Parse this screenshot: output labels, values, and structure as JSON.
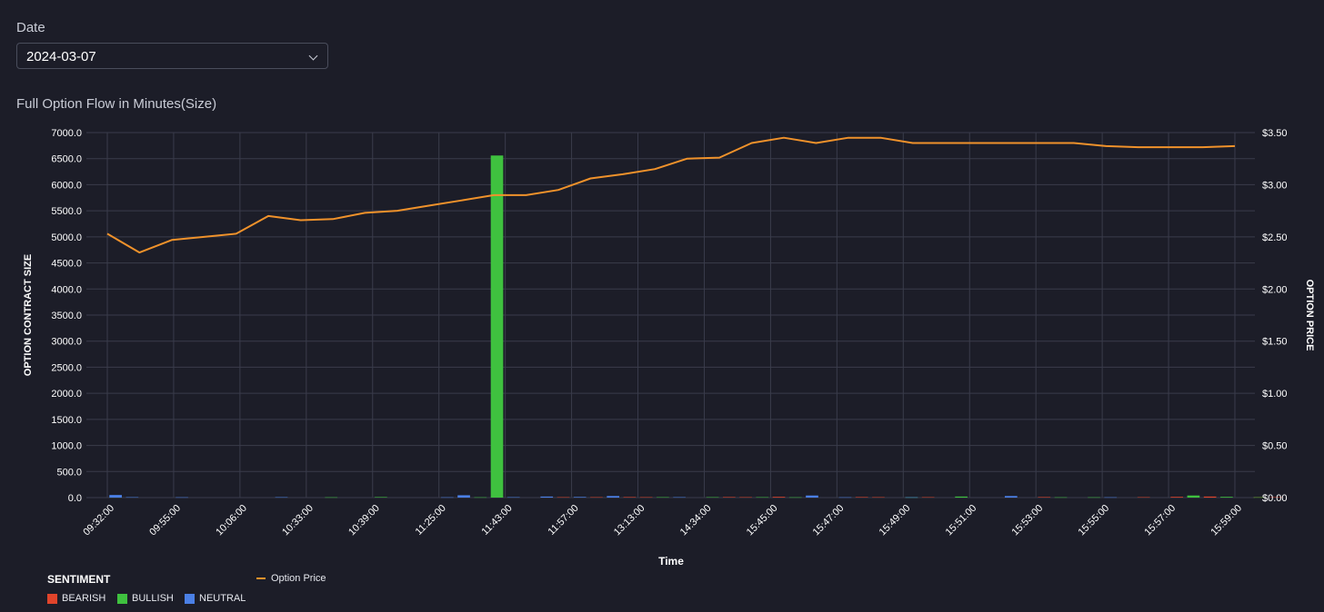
{
  "filter": {
    "label": "Date",
    "value": "2024-03-07",
    "icon": "chevron-down-icon"
  },
  "colors": {
    "bearish": "#e0442b",
    "bullish": "#3fc13f",
    "neutral": "#4b80e6",
    "price": "#f0922b",
    "grid": "#3a3c4b",
    "background": "#1c1d28"
  },
  "chart_data": {
    "type": "bar",
    "title": "Full Option Flow in Minutes(Size)",
    "xlabel": "Time",
    "ylabel": "OPTION CONTRACT SIZE",
    "y2label": "OPTION PRICE",
    "ylim": [
      0,
      7000
    ],
    "y2lim": [
      0,
      3.5
    ],
    "yticks": [
      "0.0",
      "500.0",
      "1000.0",
      "1500.0",
      "2000.0",
      "2500.0",
      "3000.0",
      "3500.0",
      "4000.0",
      "4500.0",
      "5000.0",
      "5500.0",
      "6000.0",
      "6500.0",
      "7000.0"
    ],
    "y2ticks": [
      "$0.00",
      "$0.50",
      "$1.00",
      "$1.50",
      "$2.00",
      "$2.50",
      "$3.00",
      "$3.50"
    ],
    "xticks": [
      "09:32:00",
      "09:55:00",
      "10:06:00",
      "10:33:00",
      "10:39:00",
      "11:25:00",
      "11:43:00",
      "11:57:00",
      "13:13:00",
      "14:34:00",
      "15:45:00",
      "15:47:00",
      "15:49:00",
      "15:51:00",
      "15:53:00",
      "15:55:00",
      "15:57:00",
      "15:59:00"
    ],
    "n_slots": 35,
    "grid": true,
    "legend": {
      "title": "SENTIMENT",
      "entries": [
        "BEARISH",
        "BULLISH",
        "NEUTRAL"
      ],
      "line_entry": "Option Price",
      "placement": "bottom-left"
    },
    "series": [
      {
        "name": "BEARISH",
        "bars": [
          [
            26,
            10
          ],
          [
            27,
            8
          ],
          [
            29,
            8
          ],
          [
            31,
            10
          ],
          [
            32,
            8
          ],
          [
            37,
            10
          ],
          [
            38,
            8
          ],
          [
            40,
            14
          ],
          [
            45,
            10
          ],
          [
            46,
            8
          ],
          [
            49,
            8
          ],
          [
            56,
            10
          ],
          [
            62,
            8
          ],
          [
            64,
            14
          ],
          [
            66,
            20
          ],
          [
            69,
            8
          ],
          [
            70,
            8
          ]
        ]
      },
      {
        "name": "BULLISH",
        "bars": [
          [
            0,
            8
          ],
          [
            13,
            6
          ],
          [
            16,
            10
          ],
          [
            22,
            6
          ],
          [
            23,
            6560
          ],
          [
            33,
            8
          ],
          [
            36,
            8
          ],
          [
            39,
            8
          ],
          [
            41,
            6
          ],
          [
            48,
            6
          ],
          [
            51,
            20
          ],
          [
            57,
            6
          ],
          [
            59,
            6
          ],
          [
            65,
            40
          ],
          [
            67,
            14
          ],
          [
            69,
            6
          ]
        ]
      },
      {
        "name": "NEUTRAL",
        "bars": [
          [
            0,
            50
          ],
          [
            1,
            8
          ],
          [
            4,
            6
          ],
          [
            10,
            8
          ],
          [
            20,
            6
          ],
          [
            21,
            45
          ],
          [
            24,
            8
          ],
          [
            26,
            20
          ],
          [
            28,
            12
          ],
          [
            30,
            30
          ],
          [
            34,
            8
          ],
          [
            42,
            40
          ],
          [
            44,
            6
          ],
          [
            48,
            6
          ],
          [
            54,
            30
          ],
          [
            60,
            6
          ]
        ]
      }
    ],
    "price": [
      2.53,
      2.35,
      2.47,
      2.5,
      2.53,
      2.7,
      2.66,
      2.67,
      2.73,
      2.75,
      2.8,
      2.85,
      2.9,
      2.9,
      2.95,
      3.06,
      3.1,
      3.15,
      3.25,
      3.26,
      3.4,
      3.45,
      3.4,
      3.45,
      3.45,
      3.4,
      3.4,
      3.4,
      3.4,
      3.4,
      3.4,
      3.37,
      3.36,
      3.36,
      3.36,
      3.37
    ]
  }
}
